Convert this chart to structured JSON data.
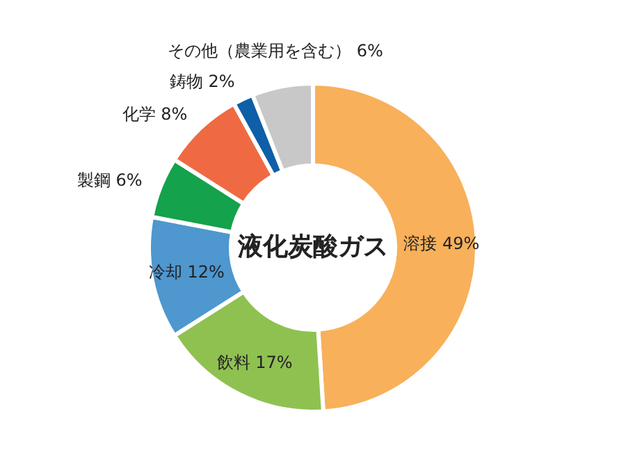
{
  "chart_data": {
    "type": "donut",
    "title": "液化炭酸ガス",
    "categories": [
      "溶接",
      "飲料",
      "冷却",
      "製鋼",
      "化学",
      "鋳物",
      "その他（農業用を含む）"
    ],
    "values": [
      49,
      17,
      12,
      6,
      8,
      2,
      6
    ],
    "value_labels": [
      "49%",
      "17%",
      "12%",
      "6%",
      "8%",
      "2%",
      "6%"
    ],
    "colors": [
      "#f8b05a",
      "#8fc151",
      "#4e97cf",
      "#15a24c",
      "#ef6a43",
      "#0f5ea8",
      "#c8c8c8"
    ],
    "legend": false
  }
}
